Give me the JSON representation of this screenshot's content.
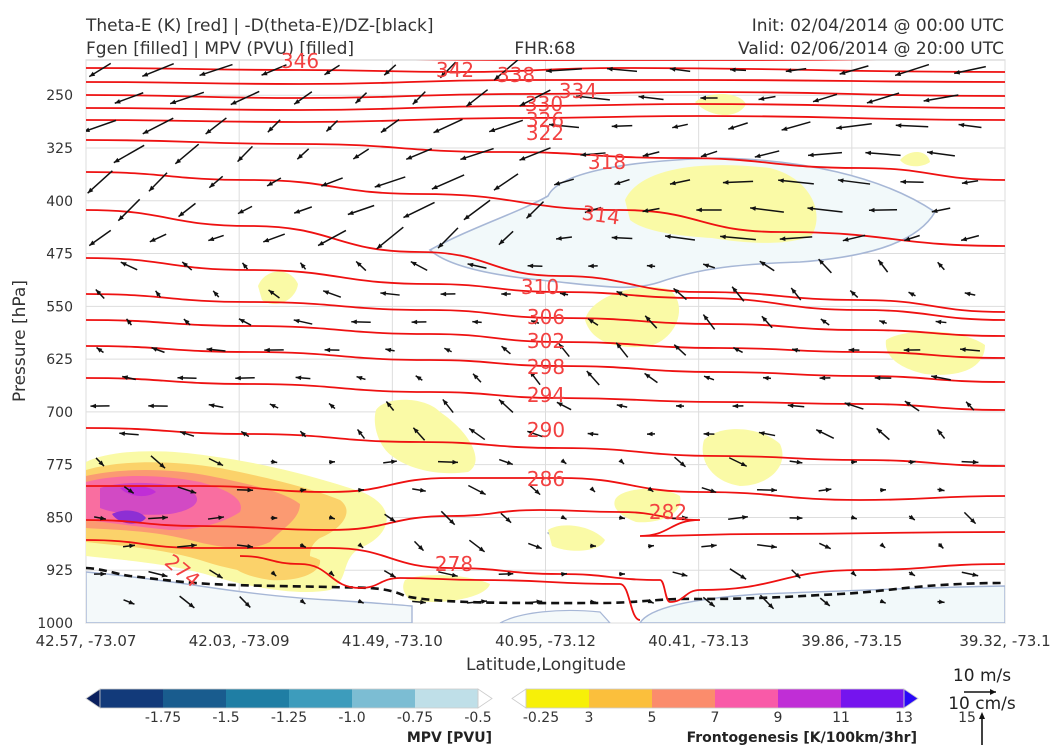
{
  "header": {
    "title_left_1": "Theta-E (K) [red] | -D(theta-E)/DZ-[black]",
    "title_left_2": "Fgen [filled] | MPV (PVU) [filled]",
    "fhr": "FHR:68",
    "init": "Init: 02/04/2014 @ 00:00 UTC",
    "valid": "Valid: 02/06/2014 @ 20:00 UTC"
  },
  "chart_data": {
    "type": "cross-section",
    "xlabel": "Latitude,Longitude",
    "ylabel": "Pressure [hPa]",
    "ylim": [
      1000,
      200
    ],
    "x_ticks": [
      "42.57, -73.07",
      "42.03, -73.09",
      "41.49, -73.10",
      "40.95, -73.12",
      "40.41, -73.13",
      "39.86, -73.15",
      "39.32, -73.1"
    ],
    "y_ticks": [
      250,
      325,
      400,
      475,
      550,
      625,
      700,
      775,
      850,
      925,
      1000
    ],
    "theta_e_contours": [
      {
        "level": "346",
        "y_left": 207
      },
      {
        "level": "342",
        "y_left": 212
      },
      {
        "level": "338",
        "y_left": 220
      },
      {
        "level": "334",
        "y_left": 238
      },
      {
        "level": "330",
        "y_left": 256
      },
      {
        "level": "326",
        "y_left": 272
      },
      {
        "level": "322",
        "y_left": 286
      },
      {
        "level": "318",
        "y_left": 327
      },
      {
        "level": "314",
        "y_left": 372
      },
      {
        "level": "310",
        "y_left": 478
      },
      {
        "level": "306",
        "y_left": 530
      },
      {
        "level": "302",
        "y_left": 566
      },
      {
        "level": "298",
        "y_left": 610
      },
      {
        "level": "294",
        "y_left": 655
      },
      {
        "level": "290",
        "y_left": 724
      },
      {
        "level": "286",
        "y_left": 818
      },
      {
        "level": "282",
        "y_left": 838
      },
      {
        "level": "278",
        "y_left": 862
      },
      {
        "level": "274",
        "y_left": 865
      }
    ],
    "wind_legend": {
      "u": "10 m/s",
      "w": "10 cm/s"
    },
    "colorbars": {
      "mpv": {
        "label": "MPV [PVU]",
        "ticks": [
          "-1.75",
          "-1.5",
          "-1.25",
          "-1.0",
          "-0.75",
          "-0.5",
          "-0.25"
        ],
        "colors": [
          "#0a1f5e",
          "#123a7a",
          "#195c8e",
          "#1f7ea4",
          "#3d9cbc",
          "#7cbdd3",
          "#bfdfe8",
          "#ffffff"
        ]
      },
      "fgen": {
        "label": "Frontogenesis [K/100km/3hr]",
        "ticks": [
          "3",
          "5",
          "7",
          "9",
          "11",
          "13",
          "15"
        ],
        "colors": [
          "#ffffff",
          "#f7f008",
          "#fbbf3c",
          "#fb8c6c",
          "#f95aa8",
          "#c02ed6",
          "#7514ee",
          "#2a08f8"
        ]
      }
    }
  }
}
